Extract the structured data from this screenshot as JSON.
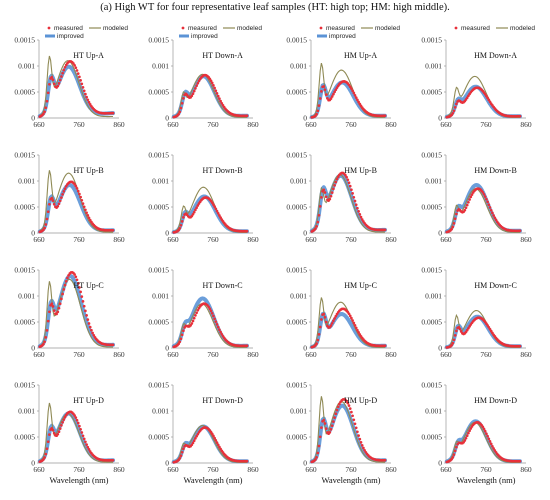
{
  "figure": {
    "title": "(a) High WT for four representative leaf samples (HT: high top; HM: high middle)."
  },
  "colors": {
    "measured": "#e8303a",
    "modeled": "#8f8a55",
    "improved": "#5b93d6"
  },
  "chart_data": {
    "type": "line",
    "xlabel": "Wavelength (nm)",
    "ylabel": "",
    "xlim": [
      660,
      860
    ],
    "ylim": [
      0,
      0.0015
    ],
    "xticks": [
      "660",
      "760",
      "860"
    ],
    "yticks": [
      "0",
      "0.0005",
      "0.001",
      "0.0015"
    ],
    "legend": {
      "placement": "top",
      "entries": [
        "measured",
        "modeled",
        "improved"
      ]
    },
    "panels": [
      {
        "title": "HT Up-A",
        "base_peak": 0.00095,
        "shoulder": 0.00055,
        "measured_peak": 0.00108,
        "modeled_peak": 0.0011,
        "modeled_shoulder": 0.00095,
        "improved_peak": 0.00098,
        "tail": 0.00011
      },
      {
        "title": "HT Down-A",
        "base_peak": 0.0008,
        "shoulder": 0.0003,
        "measured_peak": 0.00082,
        "modeled_peak": 0.00084,
        "modeled_shoulder": 0.00032,
        "improved_peak": 0.0008,
        "tail": 5e-05
      },
      {
        "title": "HM Up-A",
        "base_peak": 0.0007,
        "shoulder": 0.0005,
        "measured_peak": 0.0007,
        "modeled_peak": 0.00092,
        "modeled_shoulder": 0.0009,
        "improved_peak": 0.00068,
        "tail": 5e-05
      },
      {
        "title": "HM Down-A",
        "base_peak": 0.00058,
        "shoulder": 0.0002,
        "measured_peak": 0.00058,
        "modeled_peak": 0.0008,
        "modeled_shoulder": 0.0004,
        "improved_peak": 0.0006,
        "tail": 4e-05
      },
      {
        "title": "HT Up-B",
        "base_peak": 0.00095,
        "shoulder": 0.00048,
        "measured_peak": 0.00098,
        "modeled_peak": 0.00115,
        "modeled_shoulder": 0.00098,
        "improved_peak": 0.00092,
        "tail": 6e-05
      },
      {
        "title": "HT Down-B",
        "base_peak": 0.00068,
        "shoulder": 0.00025,
        "measured_peak": 0.00068,
        "modeled_peak": 0.00088,
        "modeled_shoulder": 0.00035,
        "improved_peak": 0.0007,
        "tail": 4e-05
      },
      {
        "title": "HM Up-B",
        "base_peak": 0.00112,
        "shoulder": 0.00058,
        "measured_peak": 0.00115,
        "modeled_peak": 0.00112,
        "modeled_shoulder": 0.0006,
        "improved_peak": 0.0011,
        "tail": 7e-05
      },
      {
        "title": "HM Down-B",
        "base_peak": 0.00085,
        "shoulder": 0.00028,
        "measured_peak": 0.00085,
        "modeled_peak": 0.00085,
        "modeled_shoulder": 0.00035,
        "improved_peak": 0.00092,
        "tail": 5e-05
      },
      {
        "title": "HT Up-C",
        "base_peak": 0.00138,
        "shoulder": 0.0006,
        "measured_peak": 0.00145,
        "modeled_peak": 0.00132,
        "modeled_shoulder": 0.00105,
        "improved_peak": 0.00138,
        "tail": 7e-05
      },
      {
        "title": "HT Down-C",
        "base_peak": 0.00085,
        "shoulder": 0.00022,
        "measured_peak": 0.00085,
        "modeled_peak": 0.00085,
        "modeled_shoulder": 0.00025,
        "improved_peak": 0.00095,
        "tail": 5e-05
      },
      {
        "title": "HM Up-C",
        "base_peak": 0.0007,
        "shoulder": 0.00052,
        "measured_peak": 0.00075,
        "modeled_peak": 0.00088,
        "modeled_shoulder": 0.0008,
        "improved_peak": 0.00065,
        "tail": 5e-05
      },
      {
        "title": "HM Down-C",
        "base_peak": 0.0006,
        "shoulder": 0.0003,
        "measured_peak": 0.00058,
        "modeled_peak": 0.00072,
        "modeled_shoulder": 0.0005,
        "improved_peak": 0.0006,
        "tail": 4e-05
      },
      {
        "title": "HT Up-D",
        "base_peak": 0.00095,
        "shoulder": 0.00045,
        "measured_peak": 0.00098,
        "modeled_peak": 0.00095,
        "modeled_shoulder": 0.00095,
        "improved_peak": 0.00095,
        "tail": 6e-05
      },
      {
        "title": "HT Down-D",
        "base_peak": 0.00068,
        "shoulder": 0.0002,
        "measured_peak": 0.00068,
        "modeled_peak": 0.00072,
        "modeled_shoulder": 0.00022,
        "improved_peak": 0.0007,
        "tail": 4e-05
      },
      {
        "title": "HM Up-D",
        "base_peak": 0.00115,
        "shoulder": 0.00062,
        "measured_peak": 0.00122,
        "modeled_peak": 0.00118,
        "modeled_shoulder": 0.00108,
        "improved_peak": 0.0011,
        "tail": 6e-05
      },
      {
        "title": "HM Down-D",
        "base_peak": 0.00078,
        "shoulder": 0.0002,
        "measured_peak": 0.00078,
        "modeled_peak": 0.00078,
        "modeled_shoulder": 0.00022,
        "improved_peak": 0.0008,
        "tail": 4e-05
      }
    ]
  }
}
